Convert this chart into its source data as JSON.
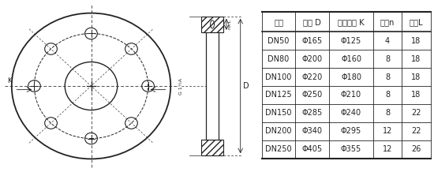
{
  "table_headers": [
    "规格",
    "外径 D",
    "中心孔距 K",
    "孔数n",
    "孔径L"
  ],
  "table_rows": [
    [
      "DN50",
      "Φ165",
      "Φ125",
      "4",
      "18"
    ],
    [
      "DN80",
      "Φ200",
      "Φ160",
      "8",
      "18"
    ],
    [
      "DN100",
      "Φ220",
      "Φ180",
      "8",
      "18"
    ],
    [
      "DN125",
      "Φ250",
      "Φ210",
      "8",
      "18"
    ],
    [
      "DN150",
      "Φ285",
      "Φ240",
      "8",
      "22"
    ],
    [
      "DN200",
      "Φ340",
      "Φ295",
      "12",
      "22"
    ],
    [
      "DN250",
      "Φ405",
      "Φ355",
      "12",
      "26"
    ]
  ],
  "line_color": "#222222",
  "bg_color": "#ffffff",
  "hatch_color": "#555555",
  "font_size": 7.0,
  "header_font_size": 7.2
}
